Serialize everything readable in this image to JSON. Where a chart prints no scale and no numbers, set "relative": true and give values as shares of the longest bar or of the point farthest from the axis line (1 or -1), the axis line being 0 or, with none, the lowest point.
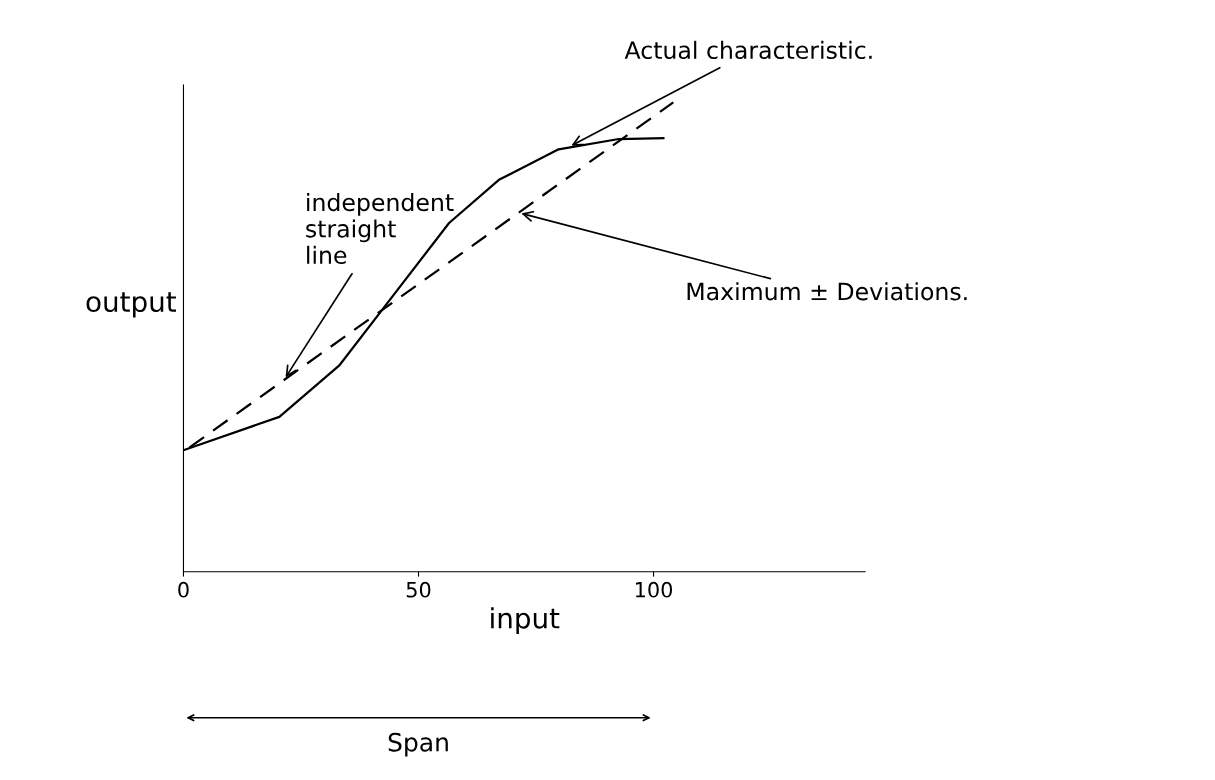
{
  "chart_data": {
    "type": "line",
    "relative": true,
    "xlabel": "input",
    "ylabel": "output",
    "xlim": [
      0,
      145
    ],
    "xticks": [
      0,
      50,
      100
    ],
    "grid": false,
    "legend": false,
    "series": [
      {
        "color": "#000000",
        "line_style": "solid",
        "x": [
          0,
          20.4,
          33.1,
          44.8,
          56.5,
          67.1,
          79.8,
          92.6,
          102.1
        ],
        "values": [
          0.259,
          0.33,
          0.439,
          0.591,
          0.743,
          0.835,
          0.9,
          0.922,
          0.924
        ]
      },
      {
        "color": "#000000",
        "line_style": "dashed",
        "x": [
          1.3,
          104.2
        ],
        "values": [
          0.265,
          1.0
        ]
      }
    ],
    "annotations": [
      {
        "text": "Actual characteristic.",
        "x": 82,
        "y": 0.905
      },
      {
        "text": "independent\nstraight\nline",
        "x": 21.4,
        "y": 0.409
      },
      {
        "text": "Maximum ± Deviations.",
        "x": 71.3,
        "y": 0.765
      },
      "Span"
    ]
  }
}
